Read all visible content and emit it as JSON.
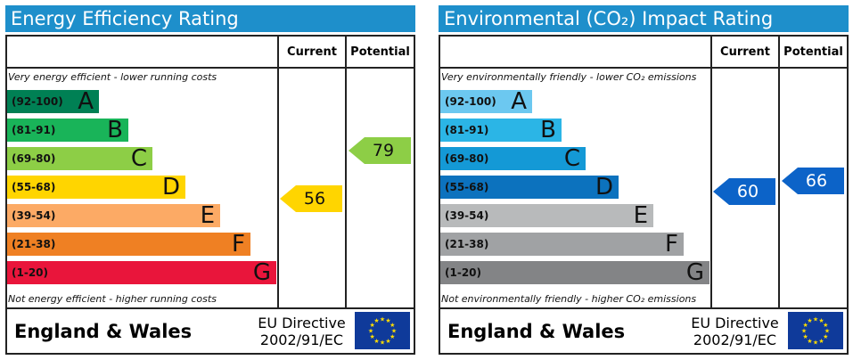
{
  "panels": [
    {
      "title": "Energy Efficiency Rating",
      "col_current": "Current",
      "col_potential": "Potential",
      "top_note": "Very energy efficient - lower running costs",
      "bottom_note": "Not energy efficient - higher running costs",
      "footer_region": "England & Wales",
      "directive_line1": "EU Directive",
      "directive_line2": "2002/91/EC",
      "flag_icon": "eu-flag-icon"
    },
    {
      "title": "Environmental (CO₂) Impact Rating",
      "col_current": "Current",
      "col_potential": "Potential",
      "top_note": "Very environmentally friendly - lower CO₂ emissions",
      "bottom_note": "Not environmentally friendly - higher CO₂ emissions",
      "footer_region": "England & Wales",
      "directive_line1": "EU Directive",
      "directive_line2": "2002/91/EC",
      "flag_icon": "eu-flag-icon"
    }
  ],
  "chart_data": [
    {
      "type": "bar",
      "title": "Energy Efficiency Rating",
      "bands": [
        {
          "range": "(92-100)",
          "letter": "A",
          "color": "#008054"
        },
        {
          "range": "(81-91)",
          "letter": "B",
          "color": "#19b459"
        },
        {
          "range": "(69-80)",
          "letter": "C",
          "color": "#8dce46"
        },
        {
          "range": "(55-68)",
          "letter": "D",
          "color": "#ffd500"
        },
        {
          "range": "(39-54)",
          "letter": "E",
          "color": "#fcaa65"
        },
        {
          "range": "(21-38)",
          "letter": "F",
          "color": "#ef8023"
        },
        {
          "range": "(1-20)",
          "letter": "G",
          "color": "#e9153b"
        }
      ],
      "current": {
        "value": 56,
        "band": "D",
        "color": "#ffd500"
      },
      "potential": {
        "value": 79,
        "band": "C",
        "color": "#8dce46"
      }
    },
    {
      "type": "bar",
      "title": "Environmental (CO₂) Impact Rating",
      "bands": [
        {
          "range": "(92-100)",
          "letter": "A",
          "color": "#6cc8f0"
        },
        {
          "range": "(81-91)",
          "letter": "B",
          "color": "#2bb5e6"
        },
        {
          "range": "(69-80)",
          "letter": "C",
          "color": "#1499d6"
        },
        {
          "range": "(55-68)",
          "letter": "D",
          "color": "#0c72be"
        },
        {
          "range": "(39-54)",
          "letter": "E",
          "color": "#b8babb"
        },
        {
          "range": "(21-38)",
          "letter": "F",
          "color": "#a0a2a4"
        },
        {
          "range": "(1-20)",
          "letter": "G",
          "color": "#838486"
        }
      ],
      "current": {
        "value": 60,
        "band": "D",
        "color": "#0c63c8"
      },
      "potential": {
        "value": 66,
        "band": "D",
        "color": "#0c63c8"
      }
    }
  ]
}
